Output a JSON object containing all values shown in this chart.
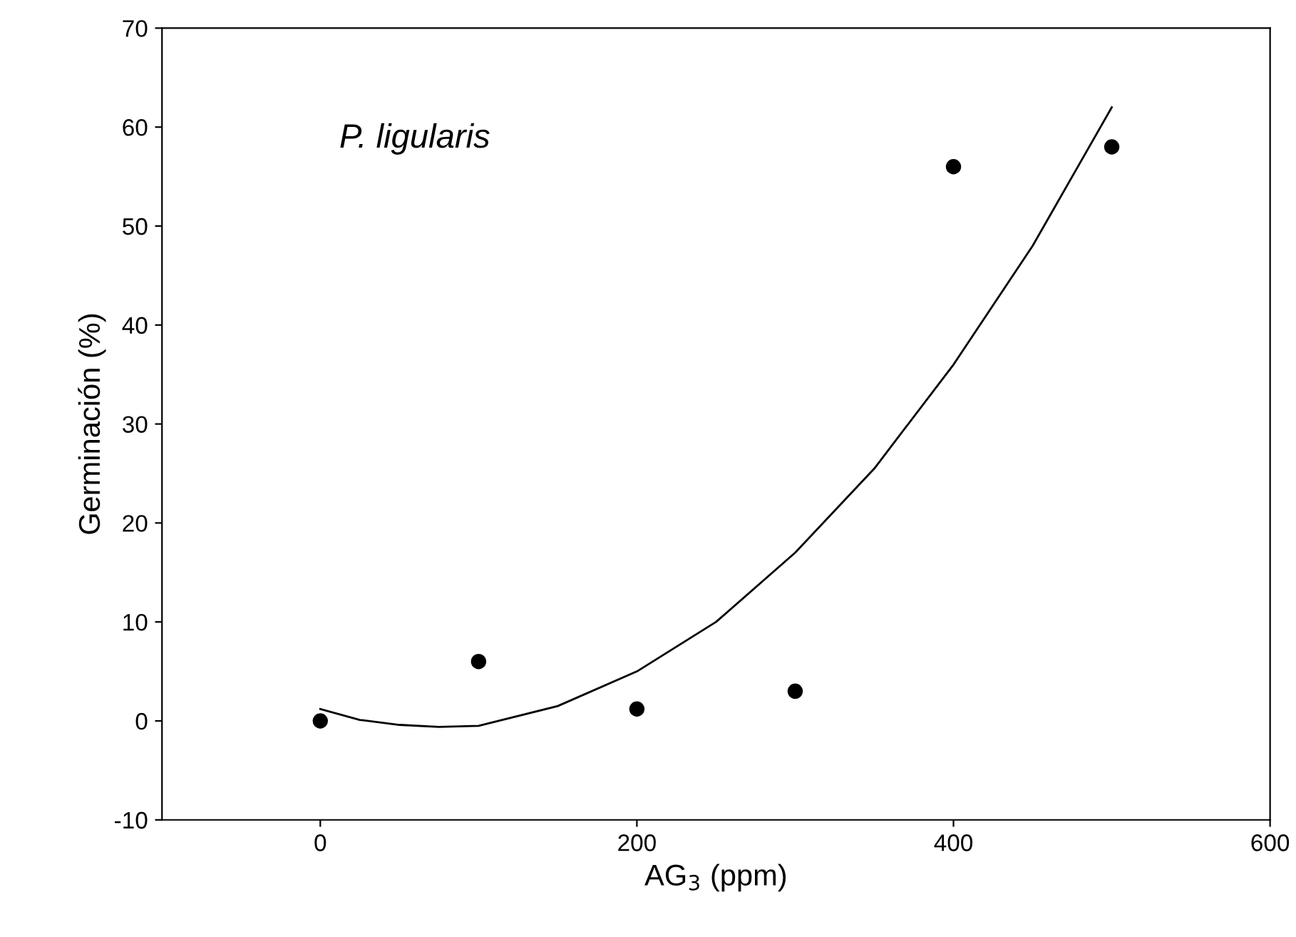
{
  "chart_data": {
    "type": "scatter",
    "xlabel": "AG$_{3}$ (ppm)",
    "ylabel": "Germinación (%)",
    "annotations": [
      "P. ligularis"
    ],
    "xlim": [
      -100,
      600
    ],
    "xticks": [
      0,
      200,
      400,
      600
    ],
    "ylim": [
      -10,
      70
    ],
    "yticks": [
      -10,
      0,
      10,
      20,
      30,
      40,
      50,
      60,
      70
    ],
    "grid": false,
    "legend": false,
    "series": [
      {
        "color": "#000000",
        "marker": "circle",
        "x": [
          0,
          100,
          200,
          300,
          400,
          500
        ],
        "values": [
          0,
          6,
          1.2,
          3,
          56,
          58
        ]
      },
      {
        "type": "line",
        "color": "#000000",
        "marker": "none",
        "line_style": "solid",
        "x": [
          0,
          25,
          50,
          75,
          100,
          150,
          200,
          250,
          300,
          350,
          400,
          450,
          500
        ],
        "values": [
          1.2,
          0.1,
          -0.4,
          -0.6,
          -0.5,
          1.5,
          5,
          10,
          17,
          25.5,
          36,
          48,
          62
        ]
      }
    ]
  }
}
